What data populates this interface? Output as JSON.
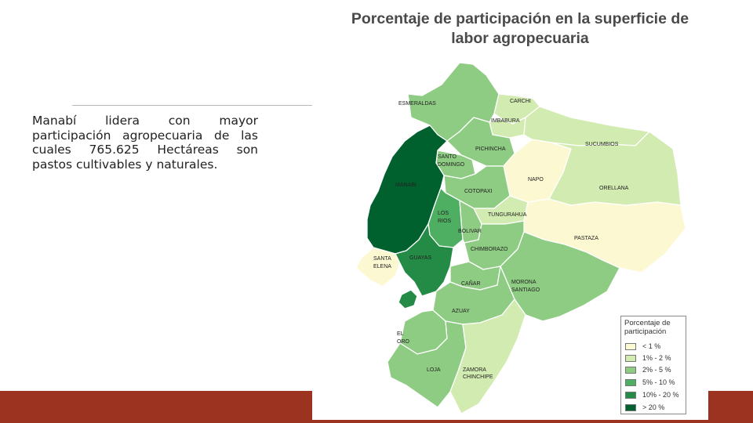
{
  "slide": {
    "text": "Manabí lidera con mayor participación agropecuaria de las cuales 765.625 Hectáreas son pastos cultivables y naturales."
  },
  "map": {
    "title_line1": "Porcentaje de participación en la superficie de",
    "title_line2": "labor agropecuaria",
    "legend": {
      "title_line1": "Porcentaje de",
      "title_line2": "participación",
      "items": [
        {
          "label": "< 1 %",
          "color": "#fcf8d2"
        },
        {
          "label": "1% - 2 %",
          "color": "#d2ebb0"
        },
        {
          "label": "2% - 5 %",
          "color": "#8fcc83"
        },
        {
          "label": "5% - 10 %",
          "color": "#4eae62"
        },
        {
          "label": "10% - 20 %",
          "color": "#238b45"
        },
        {
          "label": "> 20 %",
          "color": "#00612f"
        }
      ]
    },
    "provinces": [
      {
        "name": "ESMERALDAS",
        "class": "2% - 5 %"
      },
      {
        "name": "CARCHI",
        "class": "1% - 2 %"
      },
      {
        "name": "IMBABURA",
        "class": "1% - 2 %"
      },
      {
        "name": "SUCUMBIOS",
        "class": "1% - 2 %"
      },
      {
        "name": "PICHINCHA",
        "class": "2% - 5 %"
      },
      {
        "name": "SANTO",
        "class": "2% - 5 %"
      },
      {
        "name": "DOMINGO",
        "class": "2% - 5 %"
      },
      {
        "name": "NAPO",
        "class": "< 1 %"
      },
      {
        "name": "ORELLANA",
        "class": "1% - 2 %"
      },
      {
        "name": "MANABI",
        "class": "> 20 %"
      },
      {
        "name": "COTOPAXI",
        "class": "2% - 5 %"
      },
      {
        "name": "LOS",
        "class": "5% - 10 %"
      },
      {
        "name": "RIOS",
        "class": "5% - 10 %"
      },
      {
        "name": "TUNGURAHUA",
        "class": "1% - 2 %"
      },
      {
        "name": "BOLIVAR",
        "class": "2% - 5 %"
      },
      {
        "name": "PASTAZA",
        "class": "< 1 %"
      },
      {
        "name": "SANTA",
        "class": "< 1 %"
      },
      {
        "name": "ELENA",
        "class": "< 1 %"
      },
      {
        "name": "GUAYAS",
        "class": "10% - 20 %"
      },
      {
        "name": "CHIMBORAZO",
        "class": "2% - 5 %"
      },
      {
        "name": "CAÑAR",
        "class": "2% - 5 %"
      },
      {
        "name": "MORONA",
        "class": "2% - 5 %"
      },
      {
        "name": "SANTIAGO",
        "class": "2% - 5 %"
      },
      {
        "name": "AZUAY",
        "class": "2% - 5 %"
      },
      {
        "name": "EL",
        "class": "2% - 5 %"
      },
      {
        "name": "ORO",
        "class": "2% - 5 %"
      },
      {
        "name": "LOJA",
        "class": "2% - 5 %"
      },
      {
        "name": "ZAMORA",
        "class": "1% - 2 %"
      },
      {
        "name": "CHINCHIPE",
        "class": "1% - 2 %"
      }
    ]
  }
}
